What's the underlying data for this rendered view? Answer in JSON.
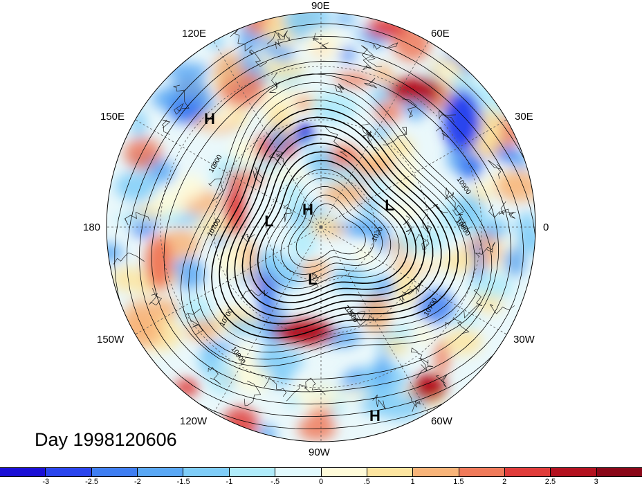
{
  "map": {
    "projection": "north polar stereographic",
    "longitude_labels": [
      "90E",
      "60E",
      "30E",
      "0",
      "30W",
      "60W",
      "90W",
      "120W",
      "150W",
      "180",
      "150E",
      "120E"
    ],
    "pressure_centers": [
      "H",
      "H",
      "L",
      "L",
      "L",
      "H"
    ],
    "contour_labels": [
      "10700",
      "10900",
      "10700",
      "10500",
      "10700",
      "10900",
      "10900",
      "10800",
      "1020"
    ],
    "caption": "Day 1998120606"
  },
  "colorbar": {
    "tick_labels": [
      "-3",
      "-2.5",
      "-2",
      "-1.5",
      "-1",
      "-.5",
      "0",
      ".5",
      "1",
      "1.5",
      "2",
      "2.5",
      "3"
    ],
    "colors": [
      "#1a0fd6",
      "#2a45ee",
      "#3f7ef2",
      "#5aa8f5",
      "#7fcdf8",
      "#b0ecfb",
      "#e2fafe",
      "#fffbd9",
      "#fde5a0",
      "#f8b479",
      "#f07a5a",
      "#e03c3a",
      "#b3111f",
      "#8a0718"
    ]
  }
}
